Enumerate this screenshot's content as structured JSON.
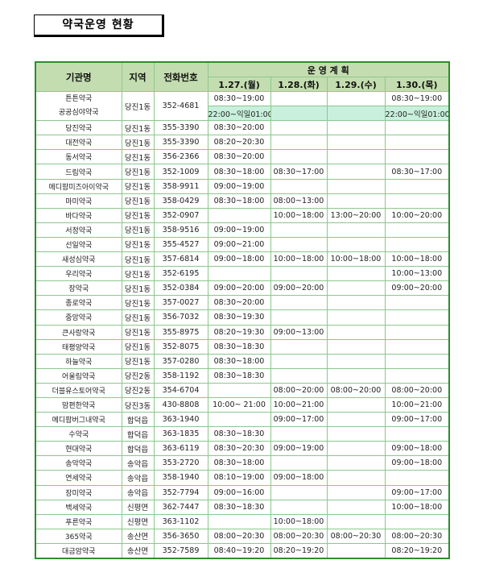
{
  "title": "약국운영 현황",
  "colors": {
    "header_bg": "#c4ddb0",
    "border": "#2e8b2e",
    "highlight": "#c9f0dd"
  },
  "headers": {
    "name": "기관명",
    "area": "지역",
    "phone": "전화번호",
    "plan": "운 영 계 획",
    "dates": [
      "1.27.(월)",
      "1.28.(화)",
      "1.29.(수)",
      "1.30.(목)"
    ]
  },
  "merged_row": {
    "names": [
      "튼튼약국",
      "공공심야약국"
    ],
    "area": "당진1동",
    "phone": "352-4681",
    "day_hours": [
      "08:30~19:00",
      "",
      "",
      "08:30~19:00"
    ],
    "night_hours": [
      "22:00~익일01:00",
      "",
      "",
      "22:00~익일01:00"
    ]
  },
  "rows": [
    {
      "name": "당진약국",
      "area": "당진1동",
      "phone": "355-3390",
      "hours": [
        "08:30~20:00",
        "",
        "",
        ""
      ]
    },
    {
      "name": "대전약국",
      "area": "당진1동",
      "phone": "355-3390",
      "hours": [
        "08:20~20:30",
        "",
        "",
        ""
      ]
    },
    {
      "name": "동서약국",
      "area": "당진1동",
      "phone": "356-2366",
      "hours": [
        "08:30~20:00",
        "",
        "",
        ""
      ]
    },
    {
      "name": "드림약국",
      "area": "당진1동",
      "phone": "352-1009",
      "hours": [
        "08:30~18:00",
        "08:30~17:00",
        "",
        "08:30~17:00"
      ]
    },
    {
      "name": "메디팜미즈아이약국",
      "area": "당진1동",
      "phone": "358-9911",
      "hours": [
        "09:00~19:00",
        "",
        "",
        ""
      ]
    },
    {
      "name": "마미약국",
      "area": "당진1동",
      "phone": "358-0429",
      "hours": [
        "08:30~18:00",
        "08:00~13:00",
        "",
        ""
      ]
    },
    {
      "name": "바다약국",
      "area": "당진1동",
      "phone": "352-0907",
      "hours": [
        "",
        "10:00~18:00",
        "13:00~20:00",
        "10:00~20:00"
      ]
    },
    {
      "name": "서정약국",
      "area": "당진1동",
      "phone": "358-9516",
      "hours": [
        "09:00~19:00",
        "",
        "",
        ""
      ]
    },
    {
      "name": "선일약국",
      "area": "당진1동",
      "phone": "355-4527",
      "hours": [
        "09:00~21:00",
        "",
        "",
        ""
      ]
    },
    {
      "name": "새성심약국",
      "area": "당진1동",
      "phone": "357-6814",
      "hours": [
        "09:00~18:00",
        "10:00~18:00",
        "10:00~18:00",
        "10:00~18:00"
      ]
    },
    {
      "name": "우리약국",
      "area": "당진1동",
      "phone": "352-6195",
      "hours": [
        "",
        "",
        "",
        "10:00~13:00"
      ]
    },
    {
      "name": "장약국",
      "area": "당진1동",
      "phone": "352-0384",
      "hours": [
        "09:00~20:00",
        "09:00~20:00",
        "",
        "09:00~20:00"
      ]
    },
    {
      "name": "종로약국",
      "area": "당진1동",
      "phone": "357-0027",
      "hours": [
        "08:30~20:00",
        "",
        "",
        ""
      ]
    },
    {
      "name": "중앙약국",
      "area": "당진1동",
      "phone": "356-7032",
      "hours": [
        "08:30~19:30",
        "",
        "",
        ""
      ]
    },
    {
      "name": "큰사랑약국",
      "area": "당진1동",
      "phone": "355-8975",
      "hours": [
        "08:20~19:30",
        "09:00~13:00",
        "",
        ""
      ]
    },
    {
      "name": "태평양약국",
      "area": "당진1동",
      "phone": "352-8075",
      "hours": [
        "08:30~18:30",
        "",
        "",
        ""
      ]
    },
    {
      "name": "하늘약국",
      "area": "당진1동",
      "phone": "357-0280",
      "hours": [
        "08:30~18:00",
        "",
        "",
        ""
      ]
    },
    {
      "name": "어울림약국",
      "area": "당진2동",
      "phone": "358-1192",
      "hours": [
        "08:30~18:30",
        "",
        "",
        ""
      ]
    },
    {
      "name": "더블유스토어약국",
      "area": "당진2동",
      "phone": "354-6704",
      "hours": [
        "",
        "08:00~20:00",
        "08:00~20:00",
        "08:00~20:00"
      ]
    },
    {
      "name": "맘편한약국",
      "area": "당진3동",
      "phone": "430-8808",
      "hours": [
        "10:00~ 21:00",
        "10:00~21:00",
        "",
        "10:00~21:00"
      ]
    },
    {
      "name": "메디팜버그내약국",
      "area": "합덕읍",
      "phone": "363-1940",
      "hours": [
        "",
        "09:00~17:00",
        "",
        "09:00~17:00"
      ]
    },
    {
      "name": "수약국",
      "area": "합덕읍",
      "phone": "363-1835",
      "hours": [
        "08:30~18:30",
        "",
        "",
        ""
      ]
    },
    {
      "name": "현대약국",
      "area": "합덕읍",
      "phone": "363-6119",
      "hours": [
        "08:30~20:30",
        "09:00~19:00",
        "",
        "09:00~18:00"
      ]
    },
    {
      "name": "송악약국",
      "area": "송악읍",
      "phone": "353-2720",
      "hours": [
        "08:30~18:00",
        "",
        "",
        "09:00~18:00"
      ]
    },
    {
      "name": "연세약국",
      "area": "송악읍",
      "phone": "358-1940",
      "hours": [
        "08:10~19:00",
        "09:00~18:00",
        "",
        ""
      ]
    },
    {
      "name": "장미약국",
      "area": "송악읍",
      "phone": "352-7794",
      "hours": [
        "09:00~16:00",
        "",
        "",
        "09:00~17:00"
      ]
    },
    {
      "name": "백세약국",
      "area": "신평면",
      "phone": "362-7447",
      "hours": [
        "08:30~18:30",
        "",
        "",
        "10:00~18:00"
      ]
    },
    {
      "name": "푸른약국",
      "area": "신평면",
      "phone": "363-1102",
      "hours": [
        "",
        "10:00~18:00",
        "",
        ""
      ]
    },
    {
      "name": "365약국",
      "area": "송산면",
      "phone": "356-3650",
      "hours": [
        "08:00~20:30",
        "08:00~20:30",
        "08:00~20:30",
        "08:00~20:30"
      ]
    },
    {
      "name": "대금암약국",
      "area": "송산면",
      "phone": "352-7589",
      "hours": [
        "08:40~19:20",
        "08:20~19:20",
        "",
        "08:20~19:20"
      ]
    }
  ]
}
